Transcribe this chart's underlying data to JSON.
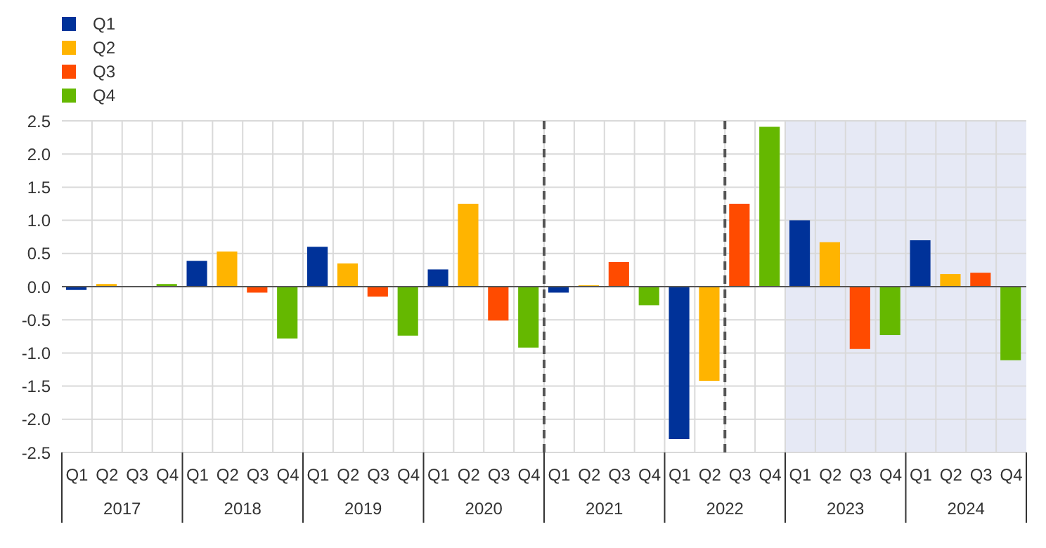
{
  "chart_data": {
    "type": "bar",
    "categories": [
      "Q1",
      "Q2",
      "Q3",
      "Q4",
      "Q1",
      "Q2",
      "Q3",
      "Q4",
      "Q1",
      "Q2",
      "Q3",
      "Q4",
      "Q1",
      "Q2",
      "Q3",
      "Q4",
      "Q1",
      "Q2",
      "Q3",
      "Q4",
      "Q1",
      "Q2",
      "Q3",
      "Q4",
      "Q1",
      "Q2",
      "Q3",
      "Q4",
      "Q1",
      "Q2",
      "Q3",
      "Q4"
    ],
    "series": [
      {
        "name": "Q1",
        "color": "#003299",
        "values": [
          -0.05,
          null,
          null,
          null,
          0.39,
          null,
          null,
          null,
          0.6,
          null,
          null,
          null,
          0.26,
          null,
          null,
          null,
          -0.09,
          null,
          null,
          null,
          -2.3,
          null,
          null,
          null,
          1.0,
          null,
          null,
          null,
          0.7,
          null,
          null,
          null
        ]
      },
      {
        "name": "Q2",
        "color": "#ffb400",
        "values": [
          null,
          0.04,
          null,
          null,
          null,
          0.53,
          null,
          null,
          null,
          0.35,
          null,
          null,
          null,
          1.25,
          null,
          null,
          null,
          0.02,
          null,
          null,
          null,
          -1.42,
          null,
          null,
          null,
          0.67,
          null,
          null,
          null,
          0.19,
          null,
          null
        ]
      },
      {
        "name": "Q3",
        "color": "#ff4b00",
        "values": [
          null,
          null,
          0,
          null,
          null,
          null,
          -0.09,
          null,
          null,
          null,
          -0.15,
          null,
          null,
          null,
          -0.51,
          null,
          null,
          null,
          0.37,
          null,
          null,
          null,
          1.25,
          null,
          null,
          null,
          -0.94,
          null,
          null,
          null,
          0.21,
          null
        ]
      },
      {
        "name": "Q4",
        "color": "#65b800",
        "values": [
          null,
          null,
          null,
          0.04,
          null,
          null,
          null,
          -0.78,
          null,
          null,
          null,
          -0.74,
          null,
          null,
          null,
          -0.92,
          null,
          null,
          null,
          -0.28,
          null,
          null,
          null,
          2.41,
          null,
          null,
          null,
          -0.73,
          null,
          null,
          null,
          -1.11
        ]
      }
    ],
    "annotations": [
      "2017",
      "2018",
      "2019",
      "2020",
      "2021",
      "2022",
      "2023",
      "2024"
    ],
    "ylim": [
      -2.5,
      2.5
    ],
    "yticks": [
      {
        "value": -2.5,
        "label": "-2.5"
      },
      {
        "value": -2,
        "label": "-2.0"
      },
      {
        "value": -1.5,
        "label": "-1.5"
      },
      {
        "value": -1,
        "label": "-1.0"
      },
      {
        "value": -0.5,
        "label": "-0.5"
      },
      {
        "value": 0,
        "label": "0.0"
      },
      {
        "value": 0.5,
        "label": "0.5"
      },
      {
        "value": 1,
        "label": "1.0"
      },
      {
        "value": 1.5,
        "label": "1.5"
      },
      {
        "value": 2,
        "label": "2.0"
      },
      {
        "value": 2.5,
        "label": "2.5"
      }
    ],
    "grid": true,
    "legend": "top left"
  }
}
